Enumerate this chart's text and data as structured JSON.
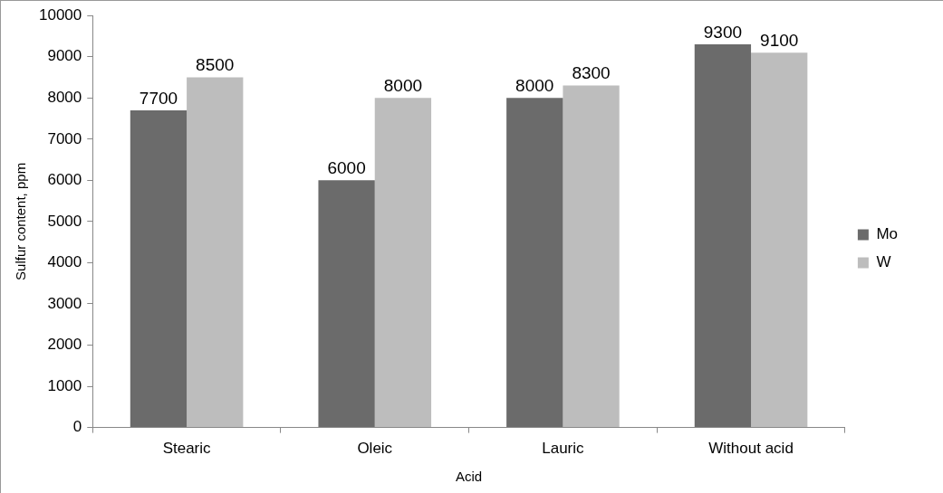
{
  "chart_data": {
    "type": "bar",
    "xlabel": "Acid",
    "ylabel": "Sulfur content, ppm",
    "categories": [
      "Stearic",
      "Oleic",
      "Lauric",
      "Without acid"
    ],
    "series": [
      {
        "name": "Mo",
        "color": "#6b6b6b",
        "values": [
          7700,
          6000,
          8000,
          9300
        ]
      },
      {
        "name": "W",
        "color": "#bdbdbd",
        "values": [
          8500,
          8000,
          8300,
          9100
        ]
      }
    ],
    "ylim": [
      0,
      10000
    ],
    "yticks": [
      0,
      1000,
      2000,
      3000,
      4000,
      5000,
      6000,
      7000,
      8000,
      9000,
      10000
    ],
    "grid": false,
    "legend": "right",
    "data_labels": true
  }
}
